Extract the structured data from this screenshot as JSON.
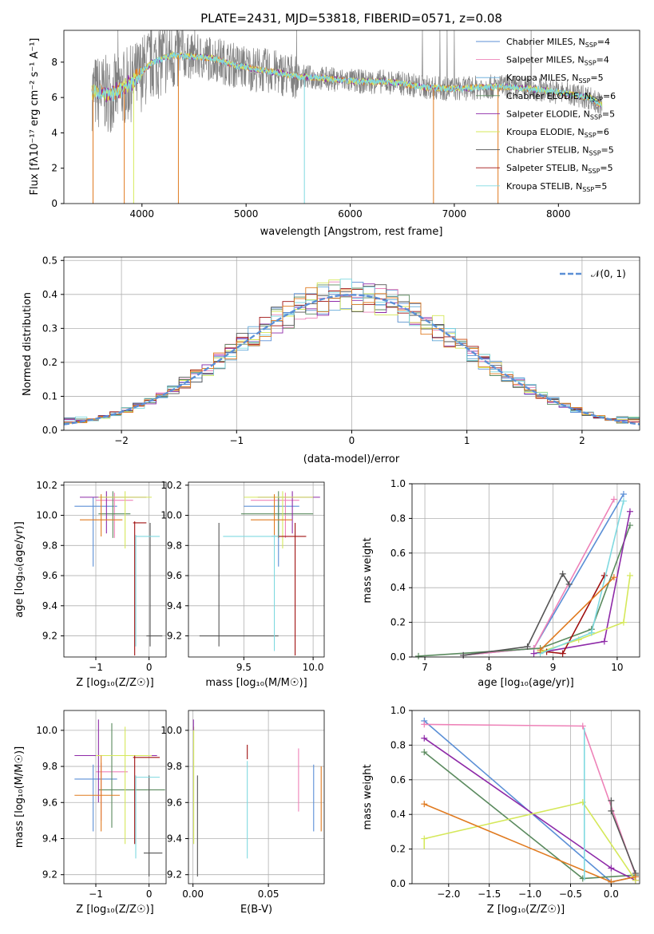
{
  "title": "PLATE=2431, MJD=53818, FIBERID=0571, z=0.08",
  "colors": {
    "chabrier_miles": "#5b8fd6",
    "salpeter_miles": "#ee82b8",
    "kroupa_miles": "#5ea6d8",
    "chabrier_elodie": "#5a8a5e",
    "salpeter_elodie": "#8e2aa8",
    "kroupa_elodie": "#d5e85a",
    "chabrier_stelib": "#555555",
    "salpeter_stelib": "#a01010",
    "kroupa_stelib": "#7fd9e0",
    "data": "#808080",
    "orange": "#e07a1f",
    "gauss": "#5b8fd6"
  },
  "spectrum": {
    "xlabel": "wavelength [Angstrom, rest frame]",
    "ylabel": "Flux [fλ10⁻¹⁷ erg cm⁻² s⁻¹ A⁻¹]",
    "xticks": [
      "4000",
      "5000",
      "6000",
      "7000",
      "8000"
    ],
    "yticks": [
      "0",
      "2",
      "4",
      "6",
      "8"
    ],
    "legend": [
      {
        "label": "Chabrier MILES, N",
        "sub": "SSP",
        "val": "=4",
        "color": "#5b8fd6"
      },
      {
        "label": "Salpeter MILES, N",
        "sub": "SSP",
        "val": "=4",
        "color": "#ee82b8"
      },
      {
        "label": "Kroupa MILES, N",
        "sub": "SSP",
        "val": "=5",
        "color": "#5ea6d8"
      },
      {
        "label": "Chabrier ELODIE, N",
        "sub": "SSP",
        "val": "=6",
        "color": "#5a8a5e"
      },
      {
        "label": "Salpeter ELODIE, N",
        "sub": "SSP",
        "val": "=5",
        "color": "#8e2aa8"
      },
      {
        "label": "Kroupa ELODIE, N",
        "sub": "SSP",
        "val": "=6",
        "color": "#d5e85a"
      },
      {
        "label": "Chabrier STELIB, N",
        "sub": "SSP",
        "val": "=5",
        "color": "#555555"
      },
      {
        "label": "Salpeter STELIB, N",
        "sub": "SSP",
        "val": "=5",
        "color": "#a01010"
      },
      {
        "label": "Kroupa STELIB, N",
        "sub": "SSP",
        "val": "=5",
        "color": "#7fd9e0"
      }
    ]
  },
  "hist": {
    "xlabel": "(data-model)/error",
    "ylabel": "Normed distribution",
    "legend": "𝒩(0, 1)",
    "xticks": [
      "−2",
      "−1",
      "0",
      "1",
      "2"
    ],
    "yticks": [
      "0.0",
      "0.1",
      "0.2",
      "0.3",
      "0.4",
      "0.5"
    ]
  },
  "p_age_z": {
    "xlabel": "Z [log₁₀(Z/Z☉)]",
    "ylabel": "age  [log₁₀(age/yr)]",
    "xticks": [
      "−1",
      "0"
    ],
    "yticks": [
      "9.2",
      "9.4",
      "9.6",
      "9.8",
      "10.0",
      "10.2"
    ]
  },
  "p_age_mass": {
    "xlabel": "mass [log₁₀(M/M☉)]",
    "xticks": [
      "9.5",
      "10.0"
    ],
    "yticks": [
      "9.2",
      "9.4",
      "9.6",
      "9.8",
      "10.0",
      "10.2"
    ]
  },
  "p_w_age": {
    "xlabel": "age  [log₁₀(age/yr)]",
    "ylabel": "mass weight",
    "xticks": [
      "7",
      "8",
      "9",
      "10"
    ],
    "yticks": [
      "0.0",
      "0.2",
      "0.4",
      "0.6",
      "0.8",
      "1.0"
    ]
  },
  "p_mass_z": {
    "xlabel": "Z [log₁₀(Z/Z☉)]",
    "ylabel": "mass [log₁₀(M/M☉)]",
    "xticks": [
      "−1",
      "0"
    ],
    "yticks": [
      "9.2",
      "9.4",
      "9.6",
      "9.8",
      "10.0"
    ]
  },
  "p_mass_ebv": {
    "xlabel": "E(B-V)",
    "xticks": [
      "0.00",
      "0.05"
    ],
    "yticks": [
      "9.2",
      "9.4",
      "9.6",
      "9.8",
      "10.0"
    ]
  },
  "p_w_z": {
    "xlabel": "Z [log₁₀(Z/Z☉)]",
    "ylabel": "mass weight",
    "xticks": [
      "−2.0",
      "−1.5",
      "−1.0",
      "−0.5",
      "0.0"
    ],
    "yticks": [
      "0.0",
      "0.2",
      "0.4",
      "0.6",
      "0.8",
      "1.0"
    ]
  },
  "chart_data": [
    {
      "type": "line",
      "title": "PLATE=2431, MJD=53818, FIBERID=0571, z=0.08",
      "xlabel": "wavelength [Angstrom, rest frame]",
      "ylabel": "Flux [fλ10⁻¹⁷ erg cm⁻² s⁻¹ A⁻¹]",
      "xlim": [
        3250,
        8780
      ],
      "ylim": [
        0,
        9.8
      ],
      "series": [
        {
          "name": "data",
          "x": [
            3520,
            3700,
            3900,
            4100,
            4300,
            4500,
            4700,
            4900,
            5100,
            5300,
            5500,
            5700,
            5900,
            6100,
            6300,
            6500,
            6700,
            6900,
            7100,
            7300,
            7500,
            7700,
            7900,
            8100,
            8300,
            8400
          ],
          "values": [
            6.3,
            6.2,
            6.8,
            8.0,
            8.4,
            8.3,
            8.2,
            7.8,
            7.6,
            7.4,
            7.2,
            7.1,
            7.0,
            6.9,
            6.9,
            6.8,
            6.6,
            6.5,
            6.5,
            6.6,
            6.6,
            6.5,
            6.4,
            6.2,
            6.0,
            5.6
          ]
        }
      ]
    },
    {
      "type": "line",
      "xlabel": "(data-model)/error",
      "ylabel": "Normed distribution",
      "xlim": [
        -2.5,
        2.5
      ],
      "ylim": [
        0,
        0.51
      ],
      "series": [
        {
          "name": "𝒩(0, 1)",
          "x": [
            -2.5,
            -2,
            -1.5,
            -1,
            -0.5,
            0,
            0.5,
            1,
            1.5,
            2,
            2.5
          ],
          "values": [
            0.018,
            0.054,
            0.13,
            0.242,
            0.352,
            0.399,
            0.352,
            0.242,
            0.13,
            0.054,
            0.018
          ]
        }
      ]
    },
    {
      "type": "scatter",
      "xlabel": "age  [log₁₀(age/yr)]",
      "ylabel": "mass weight",
      "xlim": [
        6.8,
        10.35
      ],
      "ylim": [
        0,
        1
      ],
      "series": [
        {
          "name": "Chabrier MILES, N=4",
          "x": [
            7.6,
            8.7,
            10.1
          ],
          "values": [
            0.01,
            0.05,
            0.94
          ]
        },
        {
          "name": "Salpeter MILES, N=4",
          "x": [
            7.6,
            8.7,
            9.95
          ],
          "values": [
            0.01,
            0.05,
            0.91
          ]
        },
        {
          "name": "Chabrier ELODIE, N=6",
          "x": [
            6.9,
            8.8,
            9.6,
            10.2
          ],
          "values": [
            0.005,
            0.05,
            0.16,
            0.76
          ]
        },
        {
          "name": "Salpeter ELODIE, N=5",
          "x": [
            8.7,
            9.8,
            10.2
          ],
          "values": [
            0.02,
            0.09,
            0.84
          ]
        },
        {
          "name": "Kroupa ELODIE, N=6",
          "x": [
            8.8,
            9.4,
            10.1,
            10.2
          ],
          "values": [
            0.03,
            0.1,
            0.2,
            0.47
          ]
        },
        {
          "name": "Chabrier STELIB, N=5",
          "x": [
            7.6,
            8.6,
            9.15,
            9.25
          ],
          "values": [
            0.01,
            0.06,
            0.48,
            0.42
          ]
        },
        {
          "name": "Salpeter STELIB, N=5",
          "x": [
            8.9,
            9.15,
            9.8
          ],
          "values": [
            0.03,
            0.02,
            0.47
          ]
        },
        {
          "name": "Kroupa STELIB, N=5",
          "x": [
            8.8,
            9.6,
            10.1
          ],
          "values": [
            0.02,
            0.14,
            0.9
          ]
        },
        {
          "name": "orange",
          "x": [
            8.8,
            9.95
          ],
          "values": [
            0.04,
            0.46
          ]
        }
      ]
    },
    {
      "type": "scatter",
      "xlabel": "Z [log₁₀(Z/Z☉)]",
      "ylabel": "mass weight",
      "xlim": [
        -2.45,
        0.35
      ],
      "ylim": [
        0,
        1
      ],
      "series": [
        {
          "name": "Chabrier MILES",
          "x": [
            -2.3,
            0.0,
            0.3
          ],
          "values": [
            0.94,
            0.01,
            0.04
          ]
        },
        {
          "name": "Salpeter MILES",
          "x": [
            -2.3,
            -0.35,
            0.3
          ],
          "values": [
            0.92,
            0.91,
            0.05
          ]
        },
        {
          "name": "Chabrier ELODIE",
          "x": [
            -2.3,
            -0.35,
            0.3
          ],
          "values": [
            0.76,
            0.03,
            0.05
          ]
        },
        {
          "name": "Salpeter ELODIE",
          "x": [
            -2.3,
            0.0,
            0.3
          ],
          "values": [
            0.84,
            0.09,
            0.02
          ]
        },
        {
          "name": "Kroupa ELODIE",
          "x": [
            -2.3,
            -0.35,
            0.3
          ],
          "values": [
            0.26,
            0.47,
            0.02
          ]
        },
        {
          "name": "Chabrier STELIB",
          "x": [
            0.0,
            0.0,
            0.3
          ],
          "values": [
            0.48,
            0.42,
            0.06
          ]
        },
        {
          "name": "orange",
          "x": [
            -2.3,
            0.0,
            0.3
          ],
          "values": [
            0.46,
            0.01,
            0.04
          ]
        }
      ]
    }
  ]
}
